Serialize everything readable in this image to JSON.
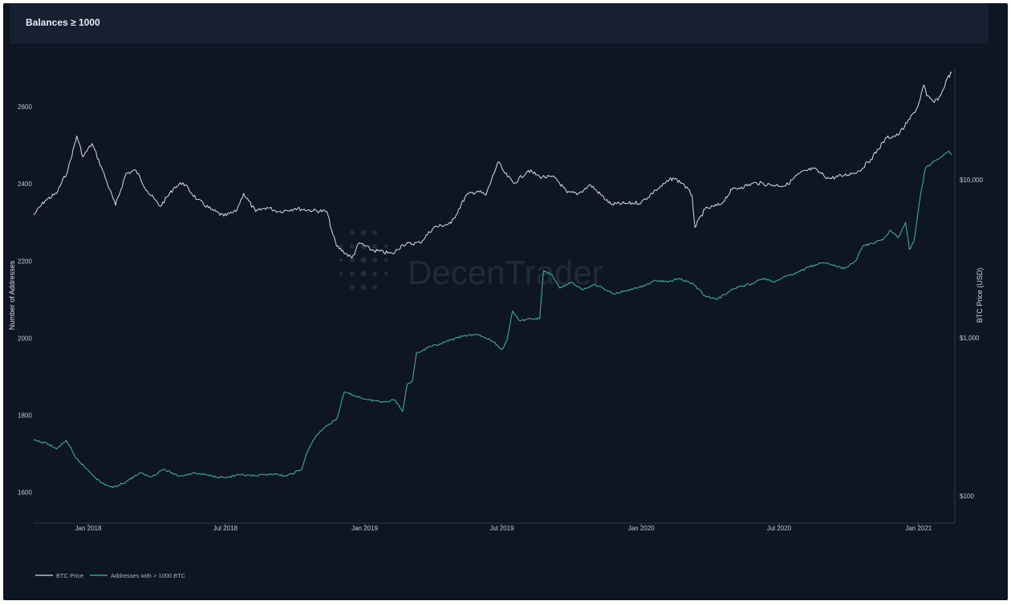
{
  "header": {
    "title": "Balances ≥ 1000"
  },
  "watermark": {
    "text": "DecenTrader"
  },
  "colors": {
    "background": "#0f1623",
    "price": "#d9dde3",
    "addresses": "#3cb9a2"
  },
  "chart_data": {
    "type": "line",
    "title": "Balances ≥ 1000",
    "xlabel": "",
    "ylabel": "Number of Addresses",
    "y2label": "BTC Price (USD)",
    "y2scale": "log",
    "xlim": [
      "2017-10-21",
      "2021-02-18"
    ],
    "ylim": [
      1520,
      2700
    ],
    "y2lim": [
      67,
      51000
    ],
    "x_ticks": [
      {
        "date": "2018-01-01",
        "label": "Jan 2018"
      },
      {
        "date": "2018-07-01",
        "label": "Jul 2018"
      },
      {
        "date": "2019-01-01",
        "label": "Jan 2019"
      },
      {
        "date": "2019-07-01",
        "label": "Jul 2019"
      },
      {
        "date": "2020-01-01",
        "label": "Jan 2020"
      },
      {
        "date": "2020-07-01",
        "label": "Jul 2020"
      },
      {
        "date": "2021-01-01",
        "label": "Jan 2021"
      }
    ],
    "y_ticks": [
      {
        "value": 1600,
        "label": "1600"
      },
      {
        "value": 1800,
        "label": "1800"
      },
      {
        "value": 2000,
        "label": "2000"
      },
      {
        "value": 2200,
        "label": "2200"
      },
      {
        "value": 2400,
        "label": "2400"
      },
      {
        "value": 2600,
        "label": "2600"
      }
    ],
    "y2_ticks": [
      {
        "value": 100,
        "label": "$100"
      },
      {
        "value": 1000,
        "label": "$1,000"
      },
      {
        "value": 10000,
        "label": "$10,000"
      }
    ],
    "legend_position": "bottom-left",
    "grid": false,
    "series": [
      {
        "name": "BTC Price",
        "axis": "y2",
        "color": "#d9dde3",
        "points": [
          [
            "2017-10-21",
            6000
          ],
          [
            "2017-11-05",
            7400
          ],
          [
            "2017-11-20",
            8200
          ],
          [
            "2017-12-05",
            11500
          ],
          [
            "2017-12-17",
            19000
          ],
          [
            "2017-12-25",
            14000
          ],
          [
            "2018-01-06",
            17000
          ],
          [
            "2018-01-20",
            11500
          ],
          [
            "2018-02-06",
            6900
          ],
          [
            "2018-02-20",
            11000
          ],
          [
            "2018-03-05",
            11500
          ],
          [
            "2018-03-20",
            8500
          ],
          [
            "2018-04-06",
            6800
          ],
          [
            "2018-04-25",
            9000
          ],
          [
            "2018-05-06",
            9600
          ],
          [
            "2018-05-25",
            7500
          ],
          [
            "2018-06-12",
            6500
          ],
          [
            "2018-06-29",
            5900
          ],
          [
            "2018-07-15",
            6300
          ],
          [
            "2018-07-25",
            8200
          ],
          [
            "2018-08-10",
            6300
          ],
          [
            "2018-08-25",
            6700
          ],
          [
            "2018-09-10",
            6300
          ],
          [
            "2018-10-01",
            6600
          ],
          [
            "2018-10-25",
            6400
          ],
          [
            "2018-11-12",
            6300
          ],
          [
            "2018-11-20",
            4500
          ],
          [
            "2018-11-25",
            3800
          ],
          [
            "2018-12-15",
            3200
          ],
          [
            "2018-12-25",
            4000
          ],
          [
            "2019-01-10",
            3600
          ],
          [
            "2019-02-07",
            3400
          ],
          [
            "2019-02-20",
            3900
          ],
          [
            "2019-03-15",
            4000
          ],
          [
            "2019-04-02",
            5000
          ],
          [
            "2019-04-25",
            5300
          ],
          [
            "2019-05-15",
            8000
          ],
          [
            "2019-05-30",
            8500
          ],
          [
            "2019-06-10",
            8000
          ],
          [
            "2019-06-26",
            13000
          ],
          [
            "2019-07-05",
            11000
          ],
          [
            "2019-07-17",
            9500
          ],
          [
            "2019-08-05",
            11500
          ],
          [
            "2019-08-20",
            10500
          ],
          [
            "2019-09-10",
            10300
          ],
          [
            "2019-09-25",
            8300
          ],
          [
            "2019-10-10",
            8200
          ],
          [
            "2019-10-26",
            9300
          ],
          [
            "2019-11-22",
            7000
          ],
          [
            "2019-12-15",
            7100
          ],
          [
            "2020-01-01",
            7200
          ],
          [
            "2020-01-20",
            8600
          ],
          [
            "2020-02-12",
            10300
          ],
          [
            "2020-02-25",
            9500
          ],
          [
            "2020-03-08",
            8000
          ],
          [
            "2020-03-12",
            5000
          ],
          [
            "2020-03-25",
            6500
          ],
          [
            "2020-04-15",
            7000
          ],
          [
            "2020-04-30",
            8700
          ],
          [
            "2020-05-12",
            9000
          ],
          [
            "2020-06-01",
            9600
          ],
          [
            "2020-06-20",
            9300
          ],
          [
            "2020-07-10",
            9200
          ],
          [
            "2020-07-28",
            11000
          ],
          [
            "2020-08-15",
            11800
          ],
          [
            "2020-09-05",
            10200
          ],
          [
            "2020-09-25",
            10700
          ],
          [
            "2020-10-15",
            11400
          ],
          [
            "2020-10-30",
            13500
          ],
          [
            "2020-11-20",
            18500
          ],
          [
            "2020-12-05",
            19200
          ],
          [
            "2020-12-17",
            23000
          ],
          [
            "2020-12-31",
            29000
          ],
          [
            "2021-01-08",
            40000
          ],
          [
            "2021-01-12",
            34000
          ],
          [
            "2021-01-22",
            31000
          ],
          [
            "2021-01-30",
            34000
          ],
          [
            "2021-02-08",
            44000
          ],
          [
            "2021-02-14",
            48000
          ]
        ]
      },
      {
        "name": "Addresses with > 1000 BTC",
        "axis": "y",
        "color": "#3cb9a2",
        "points": [
          [
            "2017-10-21",
            1735
          ],
          [
            "2017-11-10",
            1725
          ],
          [
            "2017-11-20",
            1712
          ],
          [
            "2017-12-03",
            1735
          ],
          [
            "2017-12-15",
            1690
          ],
          [
            "2018-01-02",
            1655
          ],
          [
            "2018-01-18",
            1625
          ],
          [
            "2018-02-03",
            1612
          ],
          [
            "2018-02-20",
            1628
          ],
          [
            "2018-03-10",
            1650
          ],
          [
            "2018-03-25",
            1640
          ],
          [
            "2018-04-10",
            1660
          ],
          [
            "2018-05-01",
            1642
          ],
          [
            "2018-05-20",
            1650
          ],
          [
            "2018-06-10",
            1644
          ],
          [
            "2018-06-30",
            1638
          ],
          [
            "2018-07-20",
            1645
          ],
          [
            "2018-08-10",
            1642
          ],
          [
            "2018-08-30",
            1648
          ],
          [
            "2018-09-20",
            1642
          ],
          [
            "2018-10-10",
            1660
          ],
          [
            "2018-10-16",
            1700
          ],
          [
            "2018-10-28",
            1745
          ],
          [
            "2018-11-10",
            1770
          ],
          [
            "2018-11-25",
            1790
          ],
          [
            "2018-12-05",
            1860
          ],
          [
            "2018-12-20",
            1850
          ],
          [
            "2019-01-05",
            1840
          ],
          [
            "2019-01-25",
            1835
          ],
          [
            "2019-02-10",
            1840
          ],
          [
            "2019-02-20",
            1810
          ],
          [
            "2019-02-26",
            1880
          ],
          [
            "2019-03-05",
            1890
          ],
          [
            "2019-03-10",
            1960
          ],
          [
            "2019-03-25",
            1975
          ],
          [
            "2019-04-10",
            1985
          ],
          [
            "2019-04-25",
            1995
          ],
          [
            "2019-05-10",
            2005
          ],
          [
            "2019-05-30",
            2010
          ],
          [
            "2019-06-20",
            1990
          ],
          [
            "2019-07-01",
            1970
          ],
          [
            "2019-07-08",
            1995
          ],
          [
            "2019-07-15",
            2070
          ],
          [
            "2019-07-25",
            2045
          ],
          [
            "2019-08-10",
            2050
          ],
          [
            "2019-08-20",
            2050
          ],
          [
            "2019-08-25",
            2175
          ],
          [
            "2019-09-05",
            2165
          ],
          [
            "2019-09-15",
            2130
          ],
          [
            "2019-10-01",
            2145
          ],
          [
            "2019-10-15",
            2125
          ],
          [
            "2019-11-01",
            2140
          ],
          [
            "2019-11-25",
            2115
          ],
          [
            "2019-12-15",
            2125
          ],
          [
            "2020-01-05",
            2135
          ],
          [
            "2020-01-20",
            2150
          ],
          [
            "2020-02-05",
            2145
          ],
          [
            "2020-02-20",
            2155
          ],
          [
            "2020-03-10",
            2140
          ],
          [
            "2020-03-25",
            2110
          ],
          [
            "2020-04-10",
            2100
          ],
          [
            "2020-04-25",
            2120
          ],
          [
            "2020-05-10",
            2135
          ],
          [
            "2020-05-25",
            2140
          ],
          [
            "2020-06-10",
            2155
          ],
          [
            "2020-06-25",
            2145
          ],
          [
            "2020-07-10",
            2160
          ],
          [
            "2020-07-25",
            2170
          ],
          [
            "2020-08-10",
            2185
          ],
          [
            "2020-08-25",
            2195
          ],
          [
            "2020-09-10",
            2190
          ],
          [
            "2020-09-25",
            2180
          ],
          [
            "2020-10-10",
            2200
          ],
          [
            "2020-10-20",
            2240
          ],
          [
            "2020-11-01",
            2245
          ],
          [
            "2020-11-15",
            2255
          ],
          [
            "2020-11-25",
            2280
          ],
          [
            "2020-12-05",
            2260
          ],
          [
            "2020-12-15",
            2300
          ],
          [
            "2020-12-20",
            2230
          ],
          [
            "2020-12-26",
            2250
          ],
          [
            "2021-01-02",
            2350
          ],
          [
            "2021-01-10",
            2440
          ],
          [
            "2021-01-22",
            2460
          ],
          [
            "2021-02-01",
            2470
          ],
          [
            "2021-02-10",
            2485
          ],
          [
            "2021-02-14",
            2475
          ]
        ]
      }
    ]
  }
}
